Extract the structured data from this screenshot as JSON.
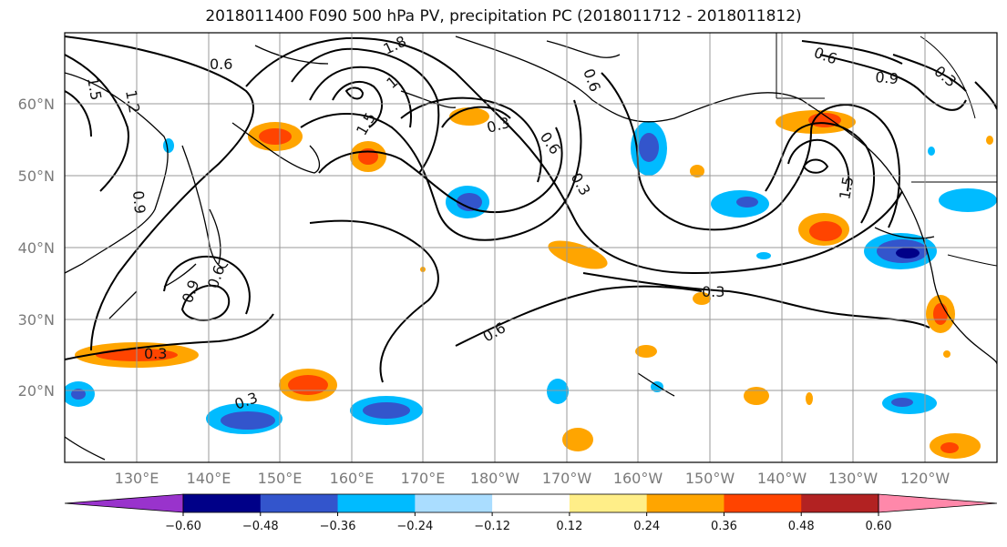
{
  "title": "2018011400 F090 500 hPa PV, precipitation PC (2018011712 - 2018011812)",
  "lat_labels": [
    "60°N",
    "50°N",
    "40°N",
    "30°N",
    "20°N"
  ],
  "lon_labels": [
    "130°E",
    "140°E",
    "150°E",
    "160°E",
    "170°E",
    "180°W",
    "170°W",
    "160°W",
    "150°W",
    "140°W",
    "130°W",
    "120°W"
  ],
  "contour_labels": [
    "0.6",
    "1.2",
    "1.5",
    "1.8",
    "1",
    "1.5",
    "0.3",
    "0.6",
    "0.3",
    "0.6",
    "0.6",
    "0.9",
    "0.3",
    "1.5",
    "0.9",
    "0.6",
    "0.9",
    "0.3",
    "0.3",
    "0.3",
    "0.6"
  ],
  "colorbar": {
    "ticks": [
      "−0.60",
      "−0.48",
      "−0.36",
      "−0.24",
      "−0.12",
      "0.12",
      "0.24",
      "0.36",
      "0.48",
      "0.60"
    ],
    "colors": [
      "#9933cc",
      "#000088",
      "#3355cc",
      "#00bbff",
      "#aaddff",
      "#ffffff",
      "#ffee88",
      "#ffa500",
      "#ff4400",
      "#b22222",
      "#ff88aa"
    ]
  }
}
